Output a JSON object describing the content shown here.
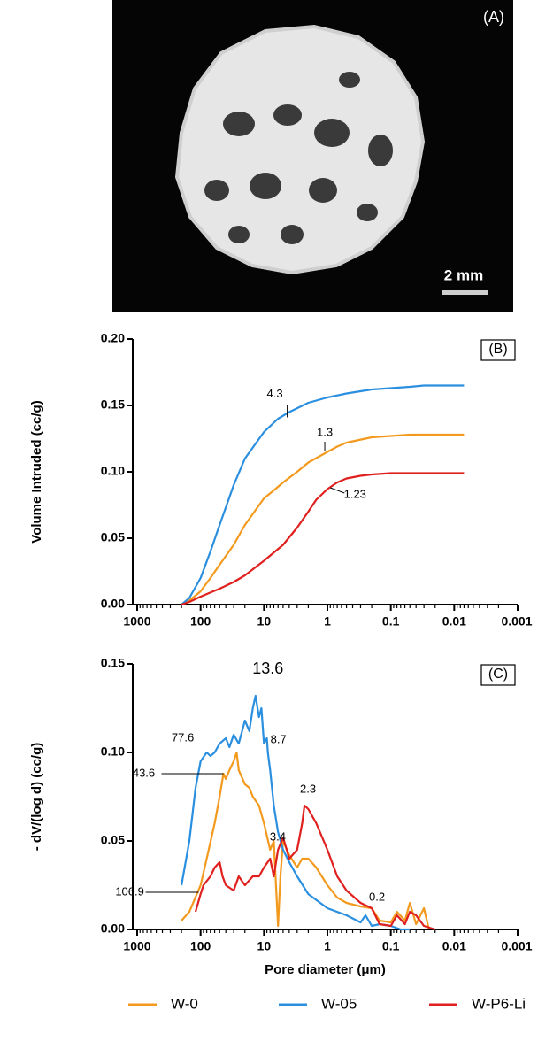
{
  "image_panel": {
    "label": "(A)",
    "scale_bar": "2 mm"
  },
  "chart_data": [
    {
      "type": "line",
      "panel_label": "(B)",
      "y_label": "Volume Intruded (cc/g)",
      "x_scale": "log",
      "xlim": [
        1000,
        0.001
      ],
      "xticks": [
        1000,
        100,
        10,
        1,
        0.1,
        0.01,
        0.001
      ],
      "ylim": [
        0,
        0.2
      ],
      "yticks": [
        {
          "value": 0,
          "label": "0.00"
        },
        {
          "value": 0.05,
          "label": "0.05"
        },
        {
          "value": 0.1,
          "label": "0.10"
        },
        {
          "value": 0.15,
          "label": "0.15"
        },
        {
          "value": 0.2,
          "label": "0.20"
        }
      ],
      "series": [
        {
          "name": "W-0",
          "color": "#f39a1e",
          "x": [
            200,
            150,
            100,
            70,
            50,
            30,
            20,
            10,
            7,
            5,
            3,
            2,
            1,
            0.7,
            0.5,
            0.2,
            0.1,
            0.05,
            0.007
          ],
          "values": [
            0,
            0.003,
            0.01,
            0.02,
            0.03,
            0.045,
            0.06,
            0.08,
            0.086,
            0.092,
            0.1,
            0.107,
            0.115,
            0.119,
            0.122,
            0.126,
            0.127,
            0.128,
            0.128
          ]
        },
        {
          "name": "W-05",
          "color": "#2b8fe0",
          "x": [
            200,
            150,
            100,
            70,
            50,
            30,
            20,
            10,
            6,
            4,
            2,
            1,
            0.5,
            0.2,
            0.1,
            0.05,
            0.03,
            0.007
          ],
          "values": [
            0,
            0.005,
            0.02,
            0.04,
            0.06,
            0.09,
            0.11,
            0.13,
            0.14,
            0.145,
            0.152,
            0.156,
            0.159,
            0.162,
            0.163,
            0.164,
            0.165,
            0.165
          ]
        },
        {
          "name": "W-P6-Li",
          "color": "#e0201e",
          "x": [
            200,
            150,
            100,
            50,
            30,
            20,
            10,
            5,
            3,
            2,
            1.5,
            1,
            0.7,
            0.5,
            0.3,
            0.2,
            0.1,
            0.007
          ],
          "values": [
            0,
            0.002,
            0.006,
            0.012,
            0.017,
            0.022,
            0.033,
            0.045,
            0.058,
            0.07,
            0.079,
            0.087,
            0.092,
            0.095,
            0.097,
            0.098,
            0.099,
            0.099
          ]
        }
      ],
      "annotations": [
        {
          "text": "4.3",
          "x": 4.3,
          "y": 0.141
        },
        {
          "text": "1.3",
          "x": 1.1,
          "y": 0.116
        },
        {
          "text": "1.23",
          "x": 0.9,
          "y": 0.088
        }
      ]
    },
    {
      "type": "line",
      "panel_label": "(C)",
      "y_label": "- dV/(log d) (cc/g)",
      "x_label": "Pore diameter (μm)",
      "x_scale": "log",
      "xlim": [
        1000,
        0.001
      ],
      "xticks": [
        1000,
        100,
        10,
        1,
        0.1,
        0.01,
        0.001
      ],
      "ylim": [
        0,
        0.15
      ],
      "yticks": [
        {
          "value": 0,
          "label": "0.00"
        },
        {
          "value": 0.05,
          "label": "0.05"
        },
        {
          "value": 0.1,
          "label": "0.10"
        },
        {
          "value": 0.15,
          "label": "0.15"
        }
      ],
      "legend": "bottom",
      "series": [
        {
          "name": "W-0",
          "color": "#f39a1e",
          "x": [
            200,
            150,
            100,
            80,
            60,
            50,
            43.6,
            40,
            35,
            30,
            27,
            25,
            20,
            17,
            15,
            12,
            10,
            8,
            7,
            6,
            5.5,
            5,
            4,
            3,
            2.5,
            2,
            1.5,
            1,
            0.7,
            0.5,
            0.3,
            0.2,
            0.15,
            0.1,
            0.08,
            0.06,
            0.05,
            0.04,
            0.03,
            0.025
          ],
          "values": [
            0.005,
            0.01,
            0.025,
            0.04,
            0.06,
            0.075,
            0.088,
            0.085,
            0.09,
            0.095,
            0.1,
            0.09,
            0.082,
            0.08,
            0.075,
            0.07,
            0.06,
            0.045,
            0.05,
            0.002,
            0.03,
            0.05,
            0.042,
            0.035,
            0.04,
            0.04,
            0.035,
            0.025,
            0.018,
            0.015,
            0.013,
            0.012,
            0.005,
            0.004,
            0.01,
            0.005,
            0.015,
            0.003,
            0.012,
            0
          ]
        },
        {
          "name": "W-05",
          "color": "#2b8fe0",
          "x": [
            200,
            150,
            120,
            100,
            80,
            70,
            60,
            50,
            40,
            35,
            30,
            25,
            20,
            17,
            15,
            13.6,
            12,
            11,
            10,
            9,
            8.7,
            8,
            7,
            6,
            5,
            4,
            3,
            2,
            1,
            0.5,
            0.3,
            0.25,
            0.2,
            0.15,
            0.1,
            0.07,
            0.05
          ],
          "values": [
            0.025,
            0.05,
            0.08,
            0.095,
            0.1,
            0.098,
            0.1,
            0.105,
            0.108,
            0.103,
            0.11,
            0.105,
            0.118,
            0.112,
            0.125,
            0.132,
            0.12,
            0.125,
            0.105,
            0.108,
            0.1,
            0.09,
            0.07,
            0.055,
            0.045,
            0.038,
            0.03,
            0.02,
            0.012,
            0.008,
            0.004,
            0.008,
            0.002,
            0.003,
            0.002,
            0,
            0
          ]
        },
        {
          "name": "W-P6-Li",
          "color": "#e0201e",
          "x": [
            120,
            100,
            90,
            70,
            60,
            50,
            45,
            40,
            30,
            25,
            20,
            15,
            12,
            10,
            8,
            7,
            6,
            5,
            4,
            3,
            2.5,
            2.3,
            2,
            1.5,
            1,
            0.7,
            0.5,
            0.3,
            0.2,
            0.15,
            0.1,
            0.08,
            0.06,
            0.05,
            0.04,
            0.03,
            0.02
          ],
          "values": [
            0.01,
            0.02,
            0.025,
            0.03,
            0.035,
            0.038,
            0.03,
            0.025,
            0.022,
            0.03,
            0.025,
            0.03,
            0.03,
            0.035,
            0.04,
            0.03,
            0.045,
            0.052,
            0.04,
            0.045,
            0.06,
            0.07,
            0.068,
            0.06,
            0.045,
            0.03,
            0.022,
            0.015,
            0.012,
            0.003,
            0.002,
            0.008,
            0.003,
            0.01,
            0.008,
            0.002,
            0
          ]
        }
      ],
      "annotations": [
        {
          "text": "13.6",
          "x": 13.6,
          "y": 0.132
        },
        {
          "text": "77.6",
          "x": 77.6,
          "y": 0.1
        },
        {
          "text": "43.6",
          "x": 43.6,
          "y": 0.088
        },
        {
          "text": "8.7",
          "x": 8.7,
          "y": 0.1
        },
        {
          "text": "3.4",
          "x": 3.4,
          "y": 0.046
        },
        {
          "text": "2.3",
          "x": 2.3,
          "y": 0.07
        },
        {
          "text": "0.2",
          "x": 0.2,
          "y": 0.012
        },
        {
          "text": "106.9",
          "x": 106.9,
          "y": 0.021
        }
      ]
    }
  ]
}
